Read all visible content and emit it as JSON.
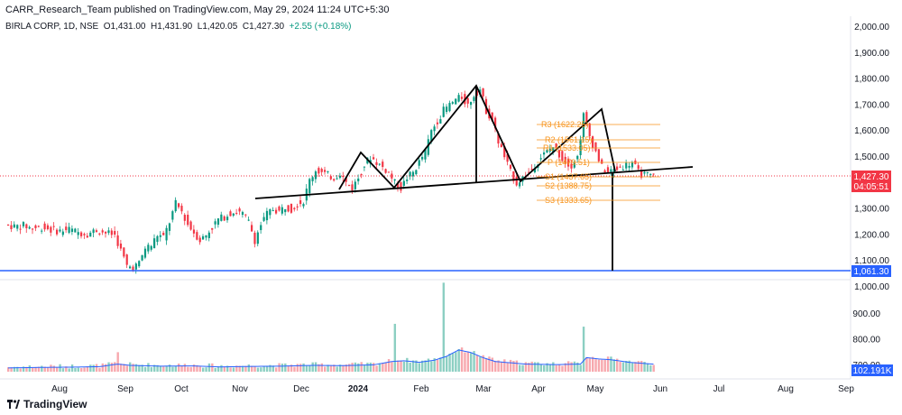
{
  "publisher_line": "CARR_Research_Team published on TradingView.com, May 29, 2024 11:24 UTC+5:30",
  "legend": {
    "symbol": "BIRLA CORP, 1D, NSE",
    "open_label": "O",
    "open": "1,431.00",
    "high_label": "H",
    "high": "1,431.90",
    "low_label": "L",
    "low": "1,420.05",
    "close_label": "C",
    "close": "1,427.30",
    "change": "+2.55 (+0.18%)"
  },
  "brand": "TradingView",
  "colors": {
    "up": "#089981",
    "down": "#f23645",
    "vol_up": "#8ccfc2",
    "vol_down": "#f7a8ae",
    "pivot": "#f7931a",
    "support": "#2962ff",
    "price_tag": "#f23645"
  },
  "chart_data": {
    "type": "candlestick",
    "x_axis_labels": [
      "Aug",
      "Sep",
      "Oct",
      "Nov",
      "Dec",
      "2024",
      "Feb",
      "Mar",
      "Apr",
      "May",
      "Jun",
      "Jul",
      "Aug",
      "Sep"
    ],
    "price_axis": {
      "ticks": [
        "2,000.00",
        "1,900.00",
        "1,800.00",
        "1,700.00",
        "1,600.00",
        "1,500.00",
        "1,300.00",
        "1,200.00",
        "1,100.00",
        "1,000.00"
      ],
      "range": [
        1000,
        2000
      ]
    },
    "volume_axis": {
      "ticks": [
        "900.00",
        "800.00",
        "700.00"
      ]
    },
    "last_price": "1,427.30",
    "countdown": "04:05:51",
    "support_level": "1,061.30",
    "last_volume": "102.191K",
    "pivot_labels": [
      "R3 (1622.25)",
      "R2 (1561.15)",
      "R1 (1533.05)",
      "P (1479.51)",
      "S1 (1437.65)",
      "S2 (1388.75)",
      "S3 (1333.65)"
    ],
    "pattern": "head-and-shoulders with neckline, projected target to support line",
    "price_path": [
      [
        0,
        1240
      ],
      [
        3,
        1232
      ],
      [
        6,
        1236
      ],
      [
        9,
        1225
      ],
      [
        12,
        1230
      ],
      [
        15,
        1220
      ],
      [
        18,
        1215
      ],
      [
        21,
        1222
      ],
      [
        24,
        1210
      ],
      [
        27,
        1205
      ],
      [
        30,
        1218
      ],
      [
        33,
        1208
      ],
      [
        36,
        1200
      ],
      [
        38,
        1140
      ],
      [
        40,
        1080
      ],
      [
        42,
        1075
      ],
      [
        44,
        1090
      ],
      [
        46,
        1150
      ],
      [
        48,
        1160
      ],
      [
        50,
        1200
      ],
      [
        52,
        1190
      ],
      [
        54,
        1250
      ],
      [
        56,
        1320
      ],
      [
        58,
        1290
      ],
      [
        60,
        1240
      ],
      [
        62,
        1210
      ],
      [
        64,
        1180
      ],
      [
        66,
        1200
      ],
      [
        68,
        1230
      ],
      [
        70,
        1260
      ],
      [
        72,
        1270
      ],
      [
        74,
        1285
      ],
      [
        76,
        1290
      ],
      [
        78,
        1280
      ],
      [
        80,
        1250
      ],
      [
        82,
        1180
      ],
      [
        84,
        1240
      ],
      [
        86,
        1280
      ],
      [
        88,
        1300
      ],
      [
        90,
        1290
      ],
      [
        92,
        1310
      ],
      [
        94,
        1300
      ],
      [
        96,
        1320
      ],
      [
        98,
        1330
      ],
      [
        100,
        1410
      ],
      [
        102,
        1450
      ],
      [
        104,
        1440
      ],
      [
        106,
        1430
      ],
      [
        108,
        1420
      ],
      [
        110,
        1440
      ],
      [
        112,
        1400
      ],
      [
        114,
        1380
      ],
      [
        116,
        1420
      ],
      [
        118,
        1470
      ],
      [
        120,
        1500
      ],
      [
        122,
        1480
      ],
      [
        124,
        1460
      ],
      [
        126,
        1440
      ],
      [
        128,
        1400
      ],
      [
        130,
        1380
      ],
      [
        132,
        1420
      ],
      [
        134,
        1440
      ],
      [
        136,
        1480
      ],
      [
        138,
        1520
      ],
      [
        140,
        1600
      ],
      [
        142,
        1640
      ],
      [
        144,
        1680
      ],
      [
        146,
        1700
      ],
      [
        148,
        1720
      ],
      [
        150,
        1730
      ],
      [
        152,
        1700
      ],
      [
        154,
        1740
      ],
      [
        156,
        1760
      ],
      [
        158,
        1680
      ],
      [
        160,
        1640
      ],
      [
        162,
        1560
      ],
      [
        164,
        1500
      ],
      [
        166,
        1440
      ],
      [
        168,
        1400
      ],
      [
        170,
        1420
      ],
      [
        172,
        1440
      ],
      [
        174,
        1470
      ],
      [
        176,
        1500
      ],
      [
        178,
        1520
      ],
      [
        180,
        1540
      ],
      [
        182,
        1510
      ],
      [
        184,
        1480
      ],
      [
        186,
        1470
      ],
      [
        188,
        1500
      ],
      [
        190,
        1660
      ],
      [
        192,
        1580
      ],
      [
        194,
        1520
      ],
      [
        196,
        1460
      ],
      [
        198,
        1440
      ],
      [
        200,
        1450
      ],
      [
        202,
        1460
      ],
      [
        204,
        1470
      ],
      [
        206,
        1480
      ],
      [
        208,
        1440
      ],
      [
        210,
        1430
      ],
      [
        212,
        1427
      ]
    ],
    "volume_path": [
      [
        0,
        690
      ],
      [
        10,
        692
      ],
      [
        20,
        693
      ],
      [
        30,
        695
      ],
      [
        36,
        705
      ],
      [
        40,
        700
      ],
      [
        50,
        697
      ],
      [
        60,
        698
      ],
      [
        70,
        694
      ],
      [
        80,
        696
      ],
      [
        90,
        697
      ],
      [
        100,
        700
      ],
      [
        110,
        699
      ],
      [
        120,
        702
      ],
      [
        126,
        715
      ],
      [
        130,
        718
      ],
      [
        135,
        712
      ],
      [
        140,
        720
      ],
      [
        144,
        735
      ],
      [
        148,
        760
      ],
      [
        152,
        750
      ],
      [
        156,
        730
      ],
      [
        160,
        715
      ],
      [
        165,
        710
      ],
      [
        170,
        705
      ],
      [
        180,
        703
      ],
      [
        188,
        705
      ],
      [
        190,
        730
      ],
      [
        194,
        725
      ],
      [
        198,
        722
      ],
      [
        204,
        712
      ],
      [
        212,
        705
      ]
    ]
  }
}
